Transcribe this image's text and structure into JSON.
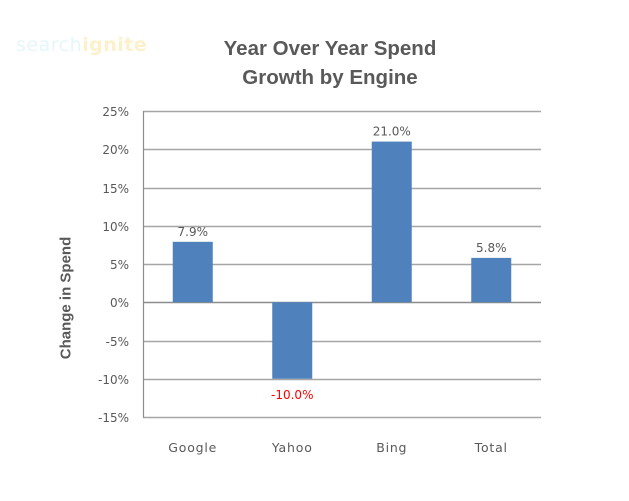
{
  "logo": {
    "part1": "search",
    "part2": "ignite"
  },
  "chart_data": {
    "type": "bar",
    "title_lines": [
      "Year Over Year Spend",
      "Growth by Engine"
    ],
    "xlabel": "",
    "ylabel": "Change in Spend",
    "categories": [
      "Google",
      "Yahoo",
      "Bing",
      "Total"
    ],
    "values": [
      7.9,
      -10.0,
      21.0,
      5.8
    ],
    "data_labels": [
      "7.9%",
      "-10.0%",
      "21.0%",
      "5.8%"
    ],
    "ylim": [
      -15,
      25
    ],
    "yticks": [
      25,
      20,
      15,
      10,
      5,
      0,
      -5,
      -10,
      -15
    ],
    "ytick_labels": [
      "25%",
      "20%",
      "15%",
      "10%",
      "5%",
      "0%",
      "-5%",
      "-10%",
      "-15%"
    ],
    "grid": true,
    "legend": "none",
    "colors": {
      "bar": "#4f81bd",
      "label": "#595959",
      "negative_label": "#ff0000",
      "grid": "#a6a6a6"
    }
  }
}
